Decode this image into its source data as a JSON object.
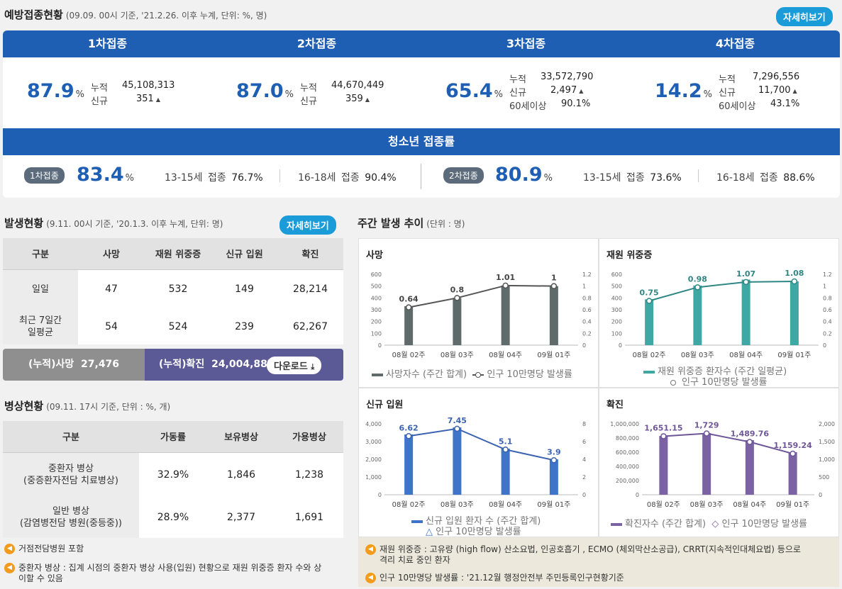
{
  "vaccination": {
    "title": "예방접종현황",
    "subtitle": "(09.09. 00시 기준, '21.2.26. 이후 누계, 단위: %, 명)",
    "more": "자세히보기",
    "doses": [
      {
        "head": "1차접종",
        "pct": "87.9",
        "unit": "%",
        "l1": "누적",
        "v1": "45,108,313",
        "l2": "신규",
        "v2": "351",
        "l3": "",
        "v3": ""
      },
      {
        "head": "2차접종",
        "pct": "87.0",
        "unit": "%",
        "l1": "누적",
        "v1": "44,670,449",
        "l2": "신규",
        "v2": "359",
        "l3": "",
        "v3": ""
      },
      {
        "head": "3차접종",
        "pct": "65.4",
        "unit": "%",
        "l1": "누적",
        "v1": "33,572,790",
        "l2": "신규",
        "v2": "2,497",
        "l3": "60세이상",
        "v3": "90.1%"
      },
      {
        "head": "4차접종",
        "pct": "14.2",
        "unit": "%",
        "l1": "누적",
        "v1": "7,296,556",
        "l2": "신규",
        "v2": "11,700",
        "l3": "60세이상",
        "v3": "43.1%"
      }
    ],
    "teen": {
      "head": "청소년 접종률",
      "d1": {
        "pill": "1차접종",
        "pct": "83.4",
        "unit": "%",
        "a_age": "13-15세",
        "a_lbl": "접종",
        "a_val": "76.7%",
        "b_age": "16-18세",
        "b_lbl": "접종",
        "b_val": "90.4%"
      },
      "d2": {
        "pill": "2차접종",
        "pct": "80.9",
        "unit": "%",
        "a_age": "13-15세",
        "a_lbl": "접종",
        "a_val": "73.6%",
        "b_age": "16-18세",
        "b_lbl": "접종",
        "b_val": "88.6%"
      }
    }
  },
  "occurrence": {
    "title": "발생현황",
    "subtitle": "(9.11. 00시 기준, '20.1.3. 이후 누계, 단위: 명)",
    "more": "자세히보기",
    "headers": [
      "구분",
      "사망",
      "재원 위중증",
      "신규 입원",
      "확진"
    ],
    "rows": [
      {
        "label": "일일",
        "vals": [
          "47",
          "532",
          "149",
          "28,214"
        ]
      },
      {
        "label1": "최근 7일간",
        "label2": "일평균",
        "vals": [
          "54",
          "524",
          "239",
          "62,267"
        ]
      }
    ],
    "cum_death_label": "(누적)사망",
    "cum_death": "27,476",
    "cum_conf_label": "(누적)확진",
    "cum_conf": "24,004,887",
    "download": "다운로드"
  },
  "beds": {
    "title": "병상현황",
    "subtitle": "(09.11. 17시 기준, 단위 : %, 개)",
    "headers": [
      "구분",
      "가동률",
      "보유병상",
      "가용병상"
    ],
    "rows": [
      {
        "l1": "중환자 병상",
        "l2": "(중증환자전담 치료병상)",
        "vals": [
          "32.9%",
          "1,846",
          "1,238"
        ]
      },
      {
        "l1": "일반 병상",
        "l2": "(감염병전담 병원(중등중))",
        "vals": [
          "28.9%",
          "2,377",
          "1,691"
        ]
      }
    ],
    "notes": [
      "거점전담병원 포함",
      "중환자 병상 : 집계 시점의 중환자 병상 사용(입원) 현황으로 재원 위중증 환자 수와 상",
      "이할 수 있음"
    ]
  },
  "weekly": {
    "title": "주간 발생 추이",
    "subtitle": "(단위 : 명)",
    "notes": [
      "재원 위중증 : 고유량 (high flow) 산소요법, 인공호흡기 , ECMO (체외막산소공급), CRRT(지속적인대체요법) 등으로",
      "격리 치료 중인 환자",
      "인구 10만명당 발생률 : '21.12월 행정안전부 주민등록인구현황기준"
    ],
    "colors": {
      "death": "#5f6b6b",
      "severe": "#3fa7a4",
      "hosp": "#3f74c9",
      "conf": "#7b62a3"
    }
  },
  "chart_data": [
    {
      "type": "bar",
      "title": "사망",
      "categories": [
        "08월 02주",
        "08월 03주",
        "08월 04주",
        "09월 01주"
      ],
      "values": [
        330,
        400,
        505,
        500
      ],
      "ylim": [
        0,
        600
      ],
      "yticks": [
        "0",
        "100",
        "200",
        "300",
        "400",
        "500",
        "600"
      ],
      "y2ticks": [
        "0",
        "0.2",
        "0.4",
        "0.6",
        "0.8",
        "1",
        "1.2"
      ],
      "line": [
        0.64,
        0.8,
        1.01,
        1
      ],
      "line_labels": [
        "0.64",
        "0.8",
        "1.01",
        "1"
      ],
      "y2lim": [
        0,
        1.2
      ],
      "legend_bar": "사망자수 (주간 합계)",
      "legend_line": "인구 10만명당 발생률"
    },
    {
      "type": "bar",
      "title": "재원 위중증",
      "categories": [
        "08월 02주",
        "08월 03주",
        "08월 04주",
        "09월 01주"
      ],
      "values": [
        388,
        505,
        555,
        540
      ],
      "ylim": [
        0,
        600
      ],
      "yticks": [
        "0",
        "100",
        "200",
        "300",
        "400",
        "500",
        "600"
      ],
      "y2ticks": [
        "0",
        "0.2",
        "0.4",
        "0.6",
        "0.8",
        "1",
        "1.2"
      ],
      "line": [
        0.75,
        0.98,
        1.07,
        1.08
      ],
      "line_labels": [
        "0.75",
        "0.98",
        "1.07",
        "1.08"
      ],
      "y2lim": [
        0,
        1.2
      ],
      "legend_bar": "재원 위중증 환자수 (주간 일평균)",
      "legend_line": "인구 10만명당 발생률"
    },
    {
      "type": "bar",
      "title": "신규 입원",
      "categories": [
        "08월 02주",
        "08월 03주",
        "08월 04주",
        "09월 01주"
      ],
      "values": [
        3400,
        3800,
        2600,
        2000
      ],
      "ylim": [
        0,
        4000
      ],
      "yticks": [
        "0",
        "1,000",
        "2,000",
        "3,000",
        "4,000"
      ],
      "y2ticks": [
        "0",
        "2",
        "4",
        "6",
        "8"
      ],
      "line": [
        6.62,
        7.45,
        5.1,
        3.9
      ],
      "line_labels": [
        "6.62",
        "7.45",
        "5.1",
        "3.9"
      ],
      "y2lim": [
        0,
        8
      ],
      "legend_bar": "신규 입원 환자 수 (주간 합계)",
      "legend_line": "인구 10만명당 발생률"
    },
    {
      "type": "bar",
      "title": "확진",
      "categories": [
        "08월 02주",
        "08월 03주",
        "08월 04주",
        "09월 01주"
      ],
      "values": [
        830000,
        870000,
        770000,
        600000
      ],
      "ylim": [
        0,
        1000000
      ],
      "yticks": [
        "0",
        "200,000",
        "400,000",
        "600,000",
        "800,000",
        "1,000,000"
      ],
      "y2ticks": [
        "0",
        "500",
        "1,000",
        "1,500",
        "2,000"
      ],
      "line": [
        1651.15,
        1729,
        1489.76,
        1159.24
      ],
      "line_labels": [
        "1,651.15",
        "1,729",
        "1,489.76",
        "1,159.24"
      ],
      "y2lim": [
        0,
        2000
      ],
      "legend_bar": "확진자수 (주간 합계)",
      "legend_line": "인구 10만명당 발생률"
    }
  ]
}
